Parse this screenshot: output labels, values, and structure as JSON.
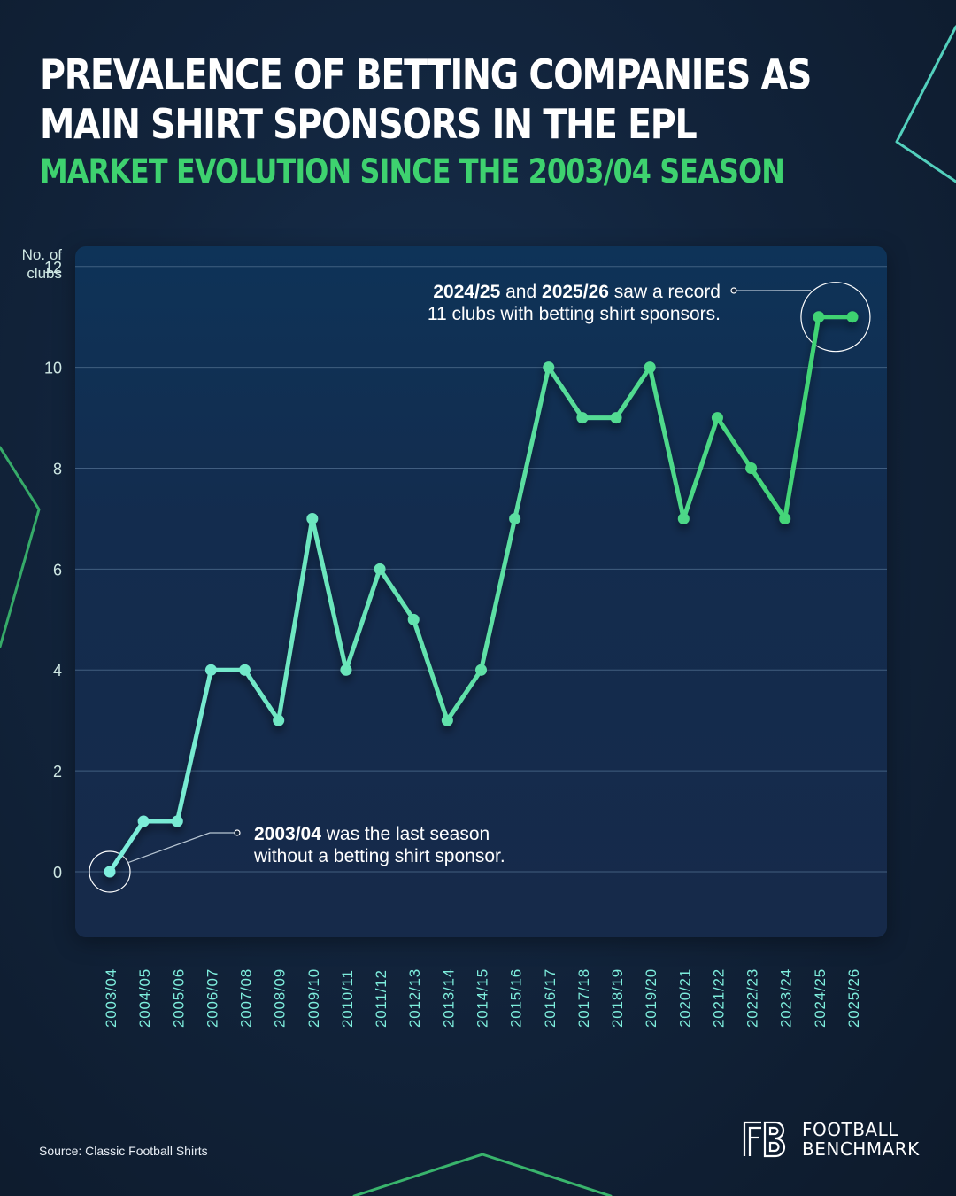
{
  "title": "PREVALENCE OF BETTING COMPANIES AS MAIN SHIRT SPONSORS IN THE EPL",
  "subtitle": "MARKET EVOLUTION SINCE THE 2003/04 SEASON",
  "source": "Source: Classic Football Shirts",
  "brand": {
    "line1": "FOOTBALL",
    "line2": "BENCHMARK",
    "logo": "FB"
  },
  "colors": {
    "background": "#12243c",
    "accent_green": "#3ed26f",
    "line_start": "#7eeedd",
    "line_end": "#3ed26f"
  },
  "chart_data": {
    "type": "line",
    "ylabel": "No. of clubs",
    "ylim": [
      -1.3,
      12.4
    ],
    "yticks": [
      0,
      2,
      4,
      6,
      8,
      10,
      12
    ],
    "grid": true,
    "categories": [
      "2003/04",
      "2004/05",
      "2005/06",
      "2006/07",
      "2007/08",
      "2008/09",
      "2009/10",
      "2010/11",
      "2011/12",
      "2012/13",
      "2013/14",
      "2014/15",
      "2015/16",
      "2016/17",
      "2017/18",
      "2018/19",
      "2019/20",
      "2020/21",
      "2021/22",
      "2022/23",
      "2023/24",
      "2024/25",
      "2025/26"
    ],
    "values": [
      0,
      1,
      1,
      4,
      4,
      3,
      7,
      4,
      6,
      5,
      3,
      4,
      7,
      10,
      9,
      9,
      10,
      7,
      9,
      8,
      7,
      11,
      11
    ],
    "annotations": [
      {
        "bold1": "2003/04",
        "text1": " was the last season",
        "line2": "without a betting shirt sponsor.",
        "target_index": 0
      },
      {
        "bold1": "2024/25",
        "text1": " and ",
        "bold2": "2025/26",
        "text2": " saw a record",
        "line2": "11 clubs with betting shirt sponsors.",
        "target_index": 21
      }
    ]
  }
}
